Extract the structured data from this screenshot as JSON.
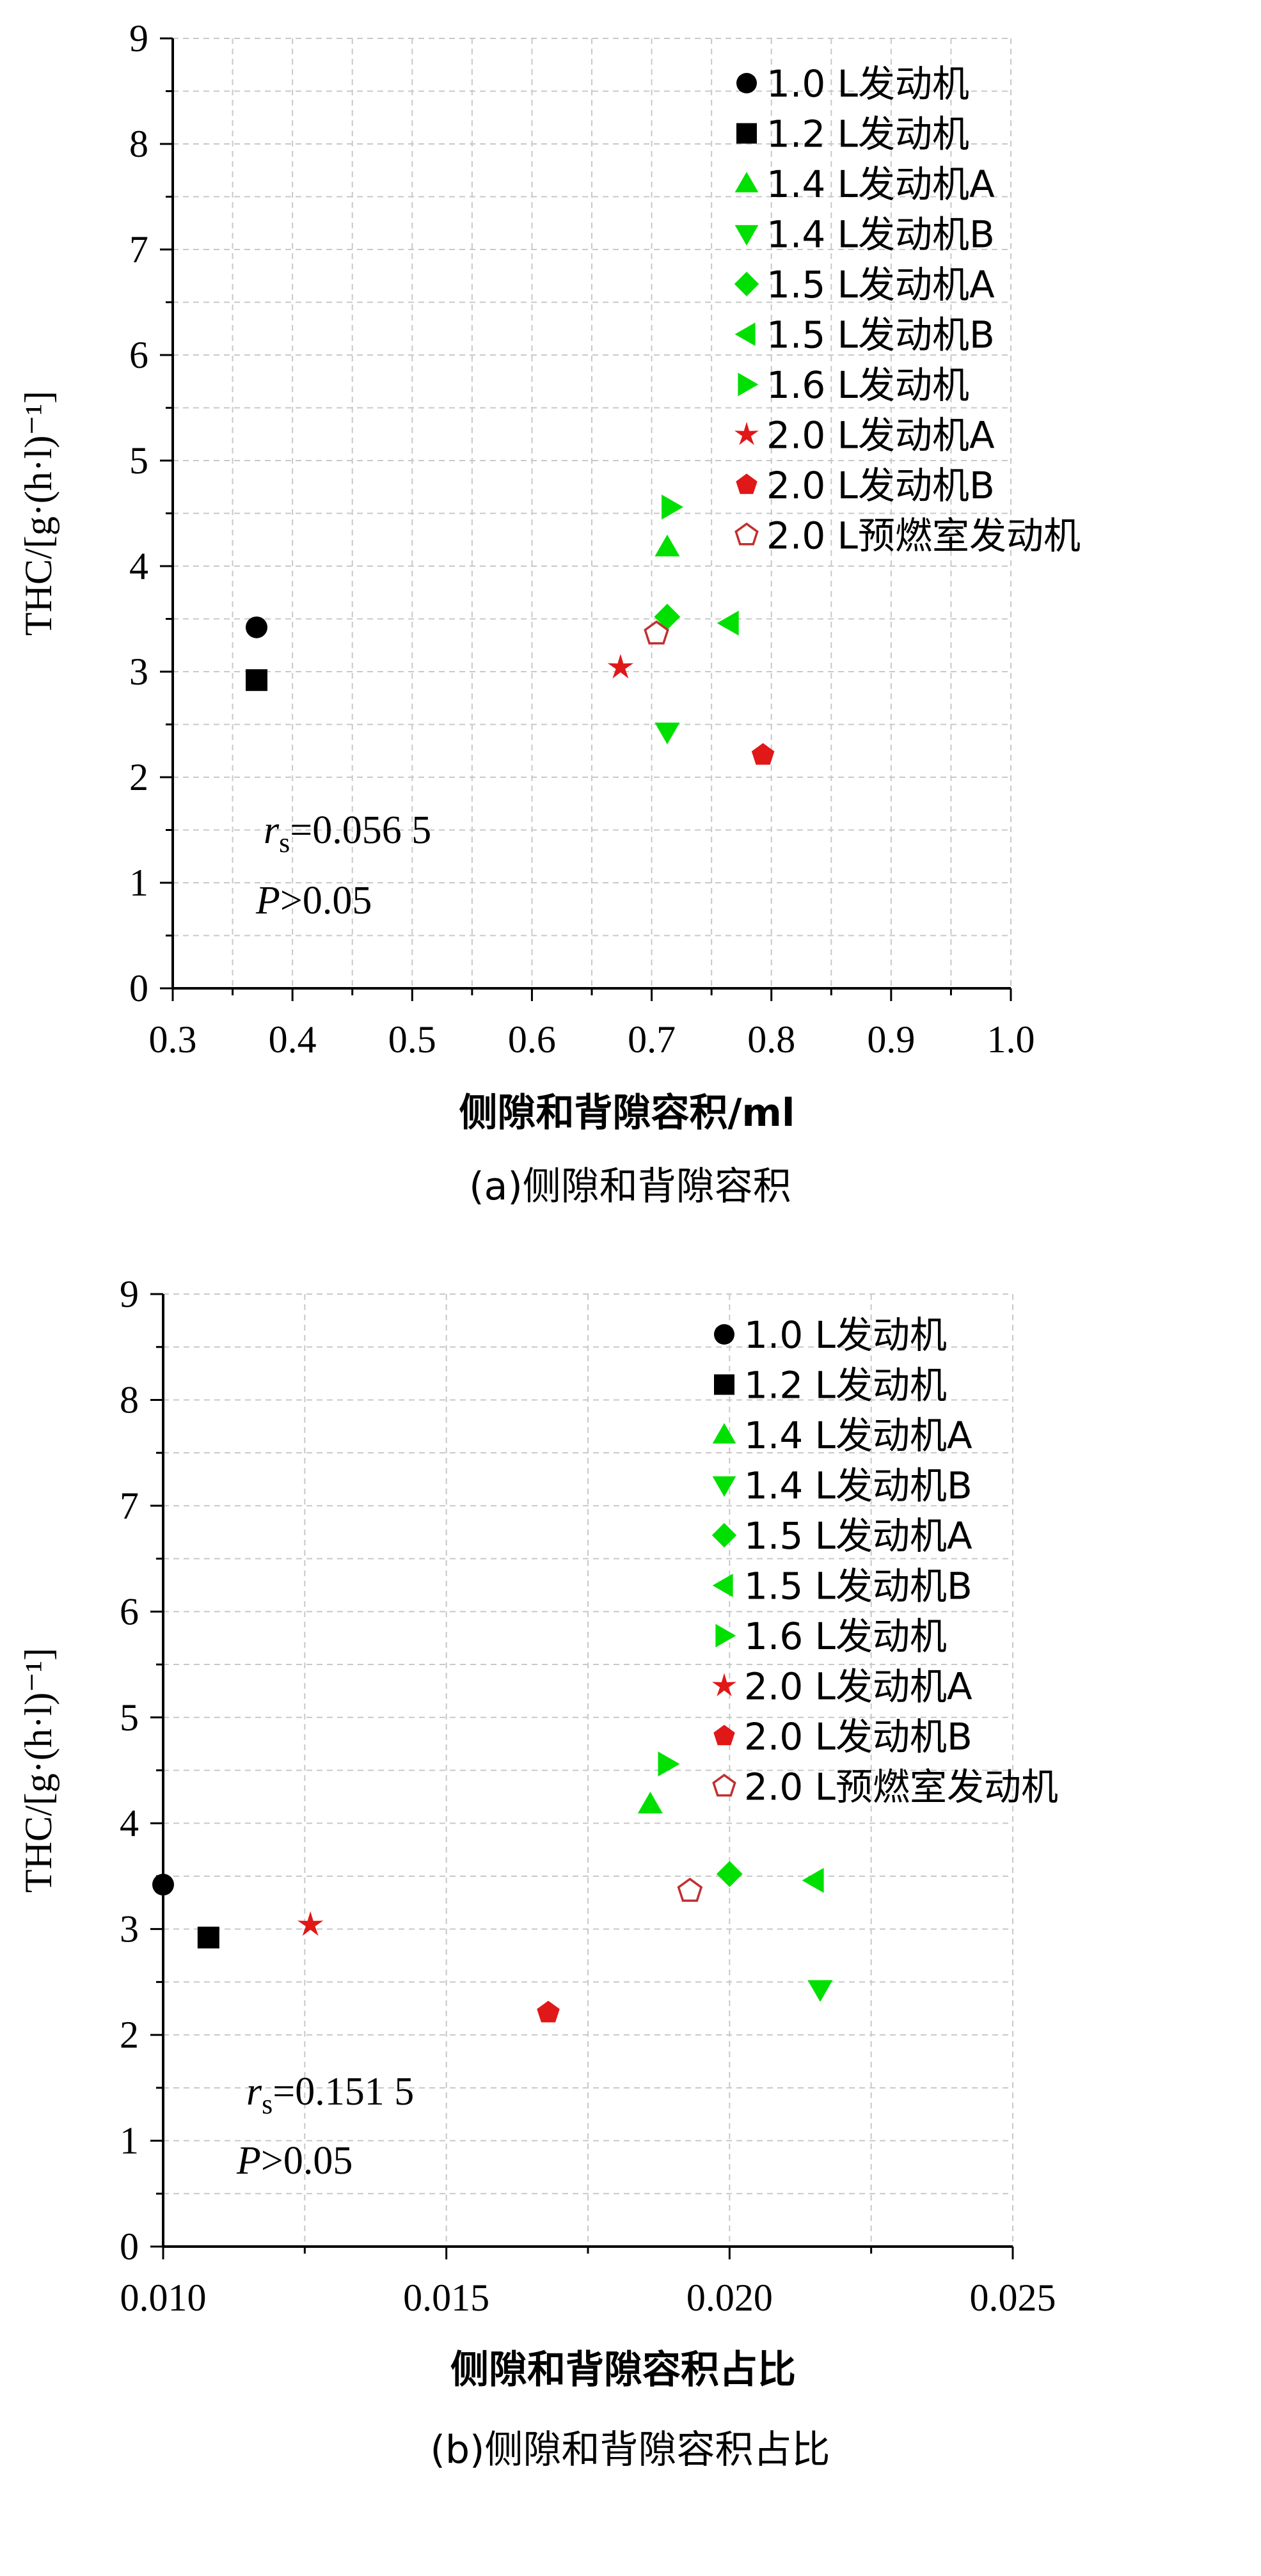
{
  "chart_data": [
    {
      "type": "scatter",
      "xlabel": "侧隙和背隙容积/ml",
      "ylabel": "THC/[g·(h·l)⁻¹]",
      "xlim": [
        0.3,
        1.0
      ],
      "ylim": [
        0,
        9
      ],
      "xticks": [
        "0.3",
        "0.4",
        "0.5",
        "0.6",
        "0.7",
        "0.8",
        "0.9",
        "1.0"
      ],
      "yticks": [
        "0",
        "1",
        "2",
        "3",
        "4",
        "5",
        "6",
        "7",
        "8",
        "9"
      ],
      "grid": true,
      "legend_position": "top-right",
      "annotation_rs": "=0.056 5",
      "annotation_p": ">0.05",
      "caption": "(a)侧隙和背隙容积",
      "series": [
        {
          "name": "1.0 L发动机",
          "marker": "circle",
          "color": "#000000",
          "x": [
            0.37
          ],
          "y": [
            3.42
          ]
        },
        {
          "name": "1.2 L发动机",
          "marker": "square",
          "color": "#000000",
          "x": [
            0.37
          ],
          "y": [
            2.92
          ]
        },
        {
          "name": "1.4 L发动机A",
          "marker": "triangle-up",
          "color": "#00e000",
          "x": [
            0.713
          ],
          "y": [
            4.18
          ]
        },
        {
          "name": "1.4 L发动机B",
          "marker": "triangle-down",
          "color": "#00e000",
          "x": [
            0.713
          ],
          "y": [
            2.43
          ]
        },
        {
          "name": "1.5 L发动机A",
          "marker": "diamond",
          "color": "#00e000",
          "x": [
            0.713
          ],
          "y": [
            3.52
          ]
        },
        {
          "name": "1.5 L发动机B",
          "marker": "triangle-left",
          "color": "#00e000",
          "x": [
            0.765
          ],
          "y": [
            3.46
          ]
        },
        {
          "name": "1.6 L发动机",
          "marker": "triangle-right",
          "color": "#00e000",
          "x": [
            0.716
          ],
          "y": [
            4.56
          ]
        },
        {
          "name": "2.0 L发动机A",
          "marker": "star",
          "color": "#e01818",
          "x": [
            0.674
          ],
          "y": [
            3.04
          ]
        },
        {
          "name": "2.0 L发动机B",
          "marker": "pentagon",
          "color": "#e01818",
          "x": [
            0.793
          ],
          "y": [
            2.21
          ]
        },
        {
          "name": "2.0 L预燃室发动机",
          "marker": "pentagon-open",
          "color": "#c03030",
          "x": [
            0.704
          ],
          "y": [
            3.36
          ]
        }
      ]
    },
    {
      "type": "scatter",
      "xlabel": "侧隙和背隙容积占比",
      "ylabel": "THC/[g·(h·l)⁻¹]",
      "xlim": [
        0.01,
        0.025
      ],
      "ylim": [
        0,
        9
      ],
      "xticks": [
        "0.010",
        "0.015",
        "0.020",
        "0.025"
      ],
      "yticks": [
        "0",
        "1",
        "2",
        "3",
        "4",
        "5",
        "6",
        "7",
        "8",
        "9"
      ],
      "grid": true,
      "legend_position": "top-right",
      "annotation_rs": "=0.151 5",
      "annotation_p": ">0.05",
      "caption": "(b)侧隙和背隙容积占比",
      "series": [
        {
          "name": "1.0 L发动机",
          "marker": "circle",
          "color": "#000000",
          "x": [
            0.01
          ],
          "y": [
            3.42
          ]
        },
        {
          "name": "1.2 L发动机",
          "marker": "square",
          "color": "#000000",
          "x": [
            0.0108
          ],
          "y": [
            2.92
          ]
        },
        {
          "name": "1.4 L发动机A",
          "marker": "triangle-up",
          "color": "#00e000",
          "x": [
            0.0186
          ],
          "y": [
            4.18
          ]
        },
        {
          "name": "1.4 L发动机B",
          "marker": "triangle-down",
          "color": "#00e000",
          "x": [
            0.0216
          ],
          "y": [
            2.43
          ]
        },
        {
          "name": "1.5 L发动机A",
          "marker": "diamond",
          "color": "#00e000",
          "x": [
            0.02
          ],
          "y": [
            3.52
          ]
        },
        {
          "name": "1.5 L发动机B",
          "marker": "triangle-left",
          "color": "#00e000",
          "x": [
            0.0215
          ],
          "y": [
            3.46
          ]
        },
        {
          "name": "1.6 L发动机",
          "marker": "triangle-right",
          "color": "#00e000",
          "x": [
            0.0189
          ],
          "y": [
            4.56
          ]
        },
        {
          "name": "2.0 L发动机A",
          "marker": "star",
          "color": "#e01818",
          "x": [
            0.0126
          ],
          "y": [
            3.04
          ]
        },
        {
          "name": "2.0 L发动机B",
          "marker": "pentagon",
          "color": "#e01818",
          "x": [
            0.0168
          ],
          "y": [
            2.21
          ]
        },
        {
          "name": "2.0 L预燃室发动机",
          "marker": "pentagon-open",
          "color": "#c03030",
          "x": [
            0.0193
          ],
          "y": [
            3.36
          ]
        }
      ]
    }
  ]
}
